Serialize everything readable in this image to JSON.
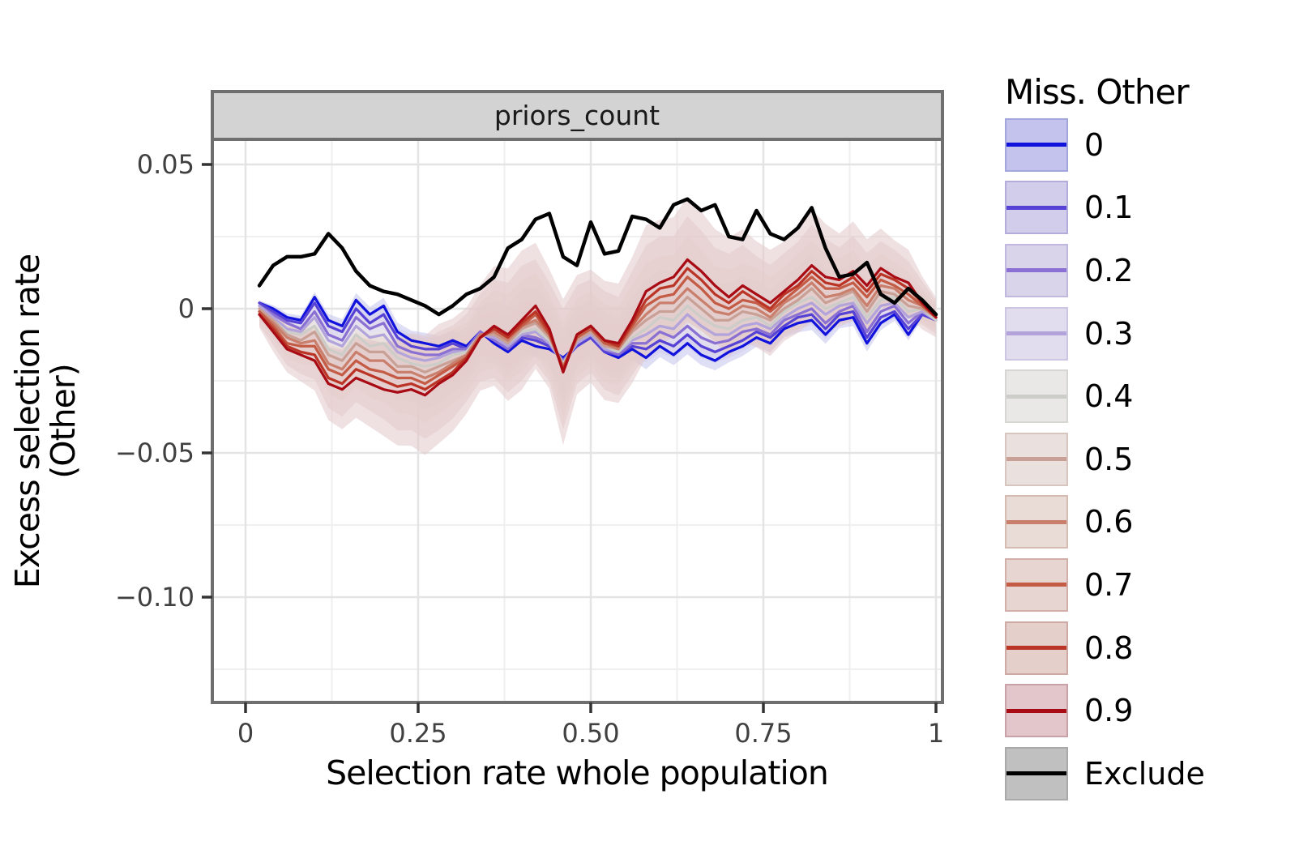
{
  "strip": {
    "title": "priors_count"
  },
  "axes": {
    "x": {
      "label": "Selection rate whole population",
      "ticks": [
        {
          "v": 0,
          "label": "0"
        },
        {
          "v": 0.25,
          "label": "0.25"
        },
        {
          "v": 0.5,
          "label": "0.50"
        },
        {
          "v": 0.75,
          "label": "0.75"
        },
        {
          "v": 1,
          "label": "1"
        }
      ],
      "minor": [
        0.125,
        0.375,
        0.625,
        0.875
      ]
    },
    "y": {
      "label_line1": "Excess selection rate",
      "label_line2": "(Other)",
      "ticks": [
        {
          "v": 0.05,
          "label": "0.05"
        },
        {
          "v": 0,
          "label": "0"
        },
        {
          "v": -0.05,
          "label": "−0.05"
        },
        {
          "v": -0.1,
          "label": "−0.10"
        }
      ],
      "minor": [
        0.025,
        -0.025,
        -0.075,
        -0.125
      ]
    }
  },
  "legend": {
    "title": "Miss. Other",
    "position": "right"
  },
  "style": {
    "grid_major": "#e4e4e4",
    "grid_minor": "#efefef",
    "panel_border": "#6f6f6f",
    "strip_fill": "#d3d3d3",
    "tick_color": "#333333",
    "ribbon_opacity": 0.55
  },
  "chart_data": {
    "type": "line",
    "title": "priors_count",
    "xlabel": "Selection rate whole population",
    "ylabel": "Excess selection rate (Other)",
    "xlim": [
      0,
      1
    ],
    "ylim": [
      -0.135,
      0.058
    ],
    "grid": true,
    "legend_title": "Miss. Other",
    "legend_position": "right",
    "x": [
      0.02,
      0.04,
      0.06,
      0.08,
      0.1,
      0.12,
      0.14,
      0.16,
      0.18,
      0.2,
      0.22,
      0.24,
      0.26,
      0.28,
      0.3,
      0.32,
      0.34,
      0.36,
      0.38,
      0.4,
      0.42,
      0.44,
      0.46,
      0.48,
      0.5,
      0.52,
      0.54,
      0.56,
      0.58,
      0.6,
      0.62,
      0.64,
      0.66,
      0.68,
      0.7,
      0.72,
      0.74,
      0.76,
      0.78,
      0.8,
      0.82,
      0.84,
      0.86,
      0.88,
      0.9,
      0.92,
      0.94,
      0.96,
      0.98,
      1.0
    ],
    "ribbon_shape": [
      0.2,
      0.3,
      0.35,
      0.4,
      0.45,
      0.55,
      0.6,
      0.6,
      0.65,
      0.7,
      0.8,
      0.85,
      0.9,
      0.9,
      0.85,
      0.8,
      0.8,
      0.9,
      1.0,
      1.05,
      0.95,
      0.9,
      1.1,
      0.9,
      0.85,
      0.9,
      0.9,
      0.95,
      1.0,
      0.95,
      0.9,
      0.95,
      0.9,
      0.85,
      0.9,
      0.85,
      0.8,
      0.8,
      0.75,
      0.8,
      0.85,
      0.8,
      0.7,
      0.75,
      0.7,
      0.6,
      0.55,
      0.5,
      0.4,
      0.3
    ],
    "series": [
      {
        "name": "0",
        "line_color": "#1212dd",
        "fill_color": "#c3c3ed",
        "key_border": "#a3a6db",
        "ribbon_scale": 0.004,
        "values": [
          0.002,
          0.0,
          -0.003,
          -0.004,
          0.004,
          -0.004,
          -0.006,
          0.003,
          -0.002,
          0.001,
          -0.008,
          -0.011,
          -0.012,
          -0.013,
          -0.011,
          -0.013,
          -0.008,
          -0.012,
          -0.015,
          -0.011,
          -0.013,
          -0.014,
          -0.017,
          -0.013,
          -0.01,
          -0.015,
          -0.017,
          -0.014,
          -0.017,
          -0.013,
          -0.016,
          -0.012,
          -0.016,
          -0.018,
          -0.015,
          -0.013,
          -0.01,
          -0.012,
          -0.007,
          -0.005,
          -0.004,
          -0.009,
          -0.004,
          -0.003,
          -0.012,
          -0.005,
          -0.002,
          -0.009,
          -0.002,
          -0.004
        ]
      },
      {
        "name": "0.1",
        "line_color": "#5742d6",
        "fill_color": "#d2cdea",
        "key_border": "#b3addc",
        "ribbon_scale": 0.0045,
        "values": [
          0.002,
          -0.001,
          -0.004,
          -0.005,
          0.002,
          -0.006,
          -0.008,
          0.0,
          -0.005,
          -0.002,
          -0.01,
          -0.013,
          -0.014,
          -0.014,
          -0.012,
          -0.014,
          -0.008,
          -0.011,
          -0.014,
          -0.01,
          -0.011,
          -0.013,
          -0.018,
          -0.013,
          -0.01,
          -0.015,
          -0.016,
          -0.013,
          -0.014,
          -0.011,
          -0.013,
          -0.009,
          -0.013,
          -0.015,
          -0.013,
          -0.011,
          -0.008,
          -0.01,
          -0.006,
          -0.003,
          -0.002,
          -0.007,
          -0.002,
          -0.001,
          -0.01,
          -0.003,
          -0.001,
          -0.007,
          -0.002,
          -0.004
        ]
      },
      {
        "name": "0.2",
        "line_color": "#8a70d2",
        "fill_color": "#dad4ea",
        "key_border": "#c0b8de",
        "ribbon_scale": 0.005,
        "values": [
          0.001,
          -0.002,
          -0.005,
          -0.007,
          -0.001,
          -0.009,
          -0.011,
          -0.003,
          -0.007,
          -0.005,
          -0.013,
          -0.015,
          -0.016,
          -0.016,
          -0.014,
          -0.014,
          -0.008,
          -0.011,
          -0.014,
          -0.009,
          -0.01,
          -0.012,
          -0.018,
          -0.012,
          -0.009,
          -0.014,
          -0.016,
          -0.012,
          -0.012,
          -0.008,
          -0.01,
          -0.006,
          -0.01,
          -0.012,
          -0.011,
          -0.008,
          -0.007,
          -0.009,
          -0.004,
          -0.002,
          0.0,
          -0.005,
          -0.001,
          0.001,
          -0.008,
          -0.001,
          0.001,
          -0.005,
          -0.001,
          -0.004
        ]
      },
      {
        "name": "0.3",
        "line_color": "#b2a3db",
        "fill_color": "#e1dcee",
        "key_border": "#ccc6e2",
        "ribbon_scale": 0.006,
        "values": [
          0.001,
          -0.003,
          -0.007,
          -0.008,
          -0.003,
          -0.011,
          -0.013,
          -0.006,
          -0.01,
          -0.009,
          -0.015,
          -0.017,
          -0.018,
          -0.017,
          -0.015,
          -0.015,
          -0.009,
          -0.01,
          -0.013,
          -0.009,
          -0.008,
          -0.012,
          -0.019,
          -0.012,
          -0.009,
          -0.014,
          -0.015,
          -0.011,
          -0.009,
          -0.006,
          -0.007,
          -0.002,
          -0.006,
          -0.009,
          -0.009,
          -0.006,
          -0.005,
          -0.007,
          -0.003,
          0.0,
          0.002,
          -0.002,
          0.001,
          0.002,
          -0.005,
          0.001,
          0.002,
          -0.003,
          -0.001,
          -0.004
        ]
      },
      {
        "name": "0.4",
        "line_color": "#cccdc8",
        "fill_color": "#e9e8e6",
        "key_border": "#d6d6d3",
        "ribbon_scale": 0.007,
        "values": [
          0.0,
          -0.004,
          -0.008,
          -0.009,
          -0.006,
          -0.014,
          -0.016,
          -0.009,
          -0.013,
          -0.012,
          -0.017,
          -0.019,
          -0.02,
          -0.019,
          -0.016,
          -0.015,
          -0.009,
          -0.009,
          -0.012,
          -0.008,
          -0.007,
          -0.011,
          -0.019,
          -0.011,
          -0.008,
          -0.013,
          -0.015,
          -0.01,
          -0.007,
          -0.003,
          -0.004,
          0.001,
          -0.003,
          -0.006,
          -0.007,
          -0.004,
          -0.003,
          -0.006,
          -0.001,
          0.002,
          0.004,
          0.0,
          0.002,
          0.004,
          -0.003,
          0.003,
          0.004,
          -0.001,
          0.0,
          -0.004
        ]
      },
      {
        "name": "0.5",
        "line_color": "#c9a096",
        "fill_color": "#eae1de",
        "key_border": "#d7c5bf",
        "ribbon_scale": 0.009,
        "values": [
          0.0,
          -0.004,
          -0.009,
          -0.011,
          -0.008,
          -0.016,
          -0.018,
          -0.012,
          -0.015,
          -0.015,
          -0.02,
          -0.02,
          -0.022,
          -0.02,
          -0.018,
          -0.016,
          -0.009,
          -0.009,
          -0.012,
          -0.007,
          -0.005,
          -0.01,
          -0.02,
          -0.011,
          -0.008,
          -0.013,
          -0.014,
          -0.008,
          -0.004,
          -0.001,
          -0.001,
          0.004,
          0.0,
          -0.004,
          -0.004,
          -0.001,
          -0.002,
          -0.004,
          0.0,
          0.003,
          0.007,
          0.002,
          0.004,
          0.006,
          -0.001,
          0.006,
          0.005,
          0.001,
          0.0,
          -0.003
        ]
      },
      {
        "name": "0.6",
        "line_color": "#c97f6c",
        "fill_color": "#e9dcd7",
        "key_border": "#d5bcb3",
        "ribbon_scale": 0.012,
        "values": [
          -0.001,
          -0.005,
          -0.01,
          -0.012,
          -0.011,
          -0.019,
          -0.021,
          -0.015,
          -0.018,
          -0.018,
          -0.022,
          -0.022,
          -0.024,
          -0.022,
          -0.019,
          -0.016,
          -0.009,
          -0.008,
          -0.011,
          -0.006,
          -0.004,
          -0.009,
          -0.02,
          -0.01,
          -0.007,
          -0.012,
          -0.014,
          -0.007,
          -0.002,
          0.002,
          0.002,
          0.007,
          0.003,
          -0.001,
          -0.002,
          0.001,
          0.0,
          -0.003,
          0.002,
          0.005,
          0.009,
          0.004,
          0.005,
          0.007,
          0.001,
          0.008,
          0.007,
          0.003,
          0.001,
          -0.003
        ]
      },
      {
        "name": "0.7",
        "line_color": "#c45b45",
        "fill_color": "#e7d5d1",
        "key_border": "#d2b0a9",
        "ribbon_scale": 0.015,
        "values": [
          -0.001,
          -0.006,
          -0.012,
          -0.013,
          -0.013,
          -0.021,
          -0.023,
          -0.018,
          -0.021,
          -0.022,
          -0.024,
          -0.024,
          -0.026,
          -0.023,
          -0.02,
          -0.017,
          -0.01,
          -0.007,
          -0.01,
          -0.006,
          -0.002,
          -0.009,
          -0.021,
          -0.01,
          -0.007,
          -0.012,
          -0.013,
          -0.006,
          0.001,
          0.004,
          0.005,
          0.011,
          0.007,
          0.002,
          0.0,
          0.003,
          0.002,
          -0.001,
          0.003,
          0.007,
          0.011,
          0.007,
          0.007,
          0.009,
          0.004,
          0.01,
          0.008,
          0.005,
          0.001,
          -0.003
        ]
      },
      {
        "name": "0.8",
        "line_color": "#bb3527",
        "fill_color": "#e5cfcb",
        "key_border": "#cfa9a3",
        "ribbon_scale": 0.019,
        "values": [
          -0.002,
          -0.007,
          -0.013,
          -0.015,
          -0.016,
          -0.024,
          -0.026,
          -0.021,
          -0.023,
          -0.025,
          -0.027,
          -0.026,
          -0.028,
          -0.025,
          -0.022,
          -0.017,
          -0.01,
          -0.007,
          -0.01,
          -0.005,
          -0.001,
          -0.008,
          -0.021,
          -0.009,
          -0.006,
          -0.011,
          -0.013,
          -0.005,
          0.003,
          0.007,
          0.008,
          0.014,
          0.01,
          0.005,
          0.002,
          0.006,
          0.003,
          0.0,
          0.005,
          0.008,
          0.013,
          0.009,
          0.008,
          0.011,
          0.006,
          0.012,
          0.01,
          0.007,
          0.002,
          -0.003
        ]
      },
      {
        "name": "0.9",
        "line_color": "#a80b14",
        "fill_color": "#e2c6cb",
        "key_border": "#c9a2a8",
        "ribbon_scale": 0.023,
        "values": [
          -0.002,
          -0.008,
          -0.014,
          -0.016,
          -0.018,
          -0.026,
          -0.028,
          -0.024,
          -0.026,
          -0.028,
          -0.029,
          -0.028,
          -0.03,
          -0.026,
          -0.023,
          -0.018,
          -0.01,
          -0.006,
          -0.009,
          -0.004,
          0.001,
          -0.007,
          -0.022,
          -0.009,
          -0.006,
          -0.011,
          -0.012,
          -0.004,
          0.006,
          0.009,
          0.011,
          0.017,
          0.013,
          0.008,
          0.004,
          0.008,
          0.005,
          0.002,
          0.006,
          0.01,
          0.015,
          0.011,
          0.01,
          0.013,
          0.008,
          0.014,
          0.011,
          0.009,
          0.002,
          -0.003
        ]
      },
      {
        "name": "Exclude",
        "line_color": "#000000",
        "fill_color": "#c0c0c0",
        "key_border": "#a9a9a9",
        "ribbon_scale": 0,
        "values": [
          0.008,
          0.015,
          0.018,
          0.018,
          0.019,
          0.026,
          0.021,
          0.013,
          0.008,
          0.006,
          0.005,
          0.003,
          0.001,
          -0.002,
          0.001,
          0.005,
          0.007,
          0.011,
          0.021,
          0.024,
          0.031,
          0.033,
          0.018,
          0.015,
          0.03,
          0.019,
          0.02,
          0.032,
          0.031,
          0.028,
          0.036,
          0.038,
          0.034,
          0.036,
          0.025,
          0.024,
          0.034,
          0.026,
          0.024,
          0.028,
          0.035,
          0.021,
          0.011,
          0.012,
          0.016,
          0.005,
          0.002,
          0.007,
          0.003,
          -0.002
        ]
      }
    ]
  }
}
